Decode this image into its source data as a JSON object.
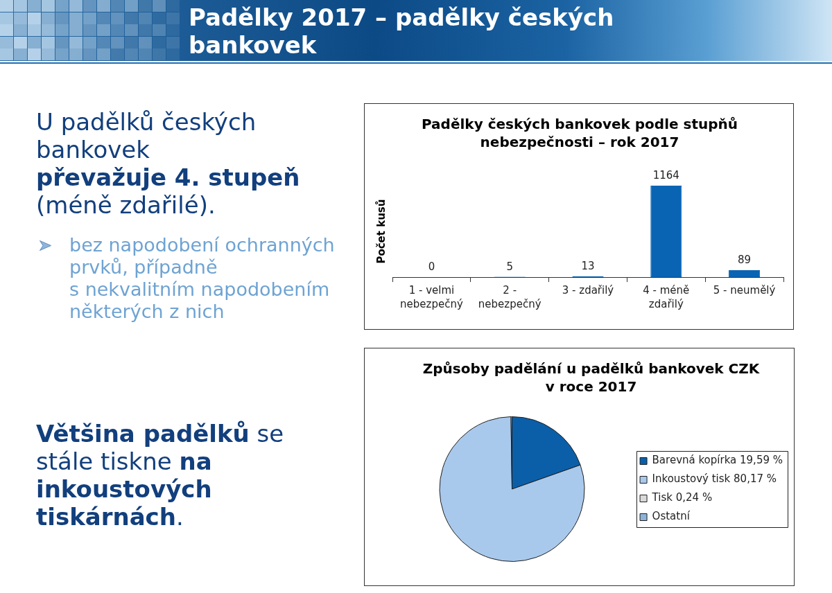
{
  "chart_data": [
    {
      "type": "other",
      "title": "Padělky 2017 – padělky českých bankovek",
      "annotations": [
        "U padělků českých bankovek",
        "převažuje 4. stupeň",
        "(méně zdařilé).",
        "bez napodobení ochranných prvků, případně",
        "s nekvalitním napodobením některých z nich",
        "Většina padělků",
        "se",
        "stále tiskne",
        "na",
        "inkoustových",
        "tiskárnách",
        "."
      ]
    },
    {
      "type": "bar",
      "title": "Padělky českých bankovek podle stupňů nebezpečnosti – rok 2017",
      "ylabel": "Počet kusů",
      "categories": [
        "1 - velmi nebezpečný",
        "2 - nebezpečný",
        "3 - zdařilý",
        "4 - méně zdařilý",
        "5 - neumělý"
      ],
      "values": [
        0,
        5,
        13,
        1164,
        89
      ],
      "color": "#0a64b4",
      "data_labels": true,
      "tick_labels": "x"
    },
    {
      "type": "pie",
      "title": "Způsoby padělání u padělků bankovek CZK v roce 2017",
      "categories": [
        "Barevná kopírka 19,59 %",
        "Inkoustový tisk 80,17 %",
        "Tisk 0,24 %",
        "Ostatní"
      ],
      "values": [
        19.59,
        80.17,
        0.24,
        0
      ],
      "colors": [
        "#0b5fa8",
        "#a9c9ec",
        "#d9d9d9",
        "#8fb3d6"
      ],
      "legend": "right"
    }
  ]
}
